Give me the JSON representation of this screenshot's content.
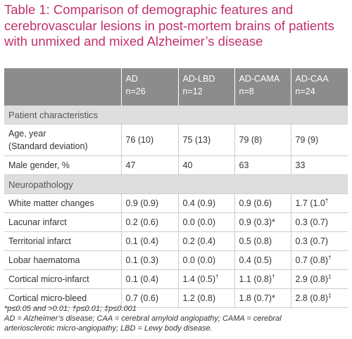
{
  "title": [
    "Table 1: Comparison of demographic features and",
    "cerebrovascular lesions in post-mortem brains of patients",
    "with unmixed and mixed Alzheimer’s disease"
  ],
  "table": {
    "header": [
      {
        "name": "AD",
        "n": "n=26"
      },
      {
        "name": "AD-LBD",
        "n": "n=12"
      },
      {
        "name": "AD-CAMA",
        "n": "n=8"
      },
      {
        "name": "AD-CAA",
        "n": "n=24"
      }
    ],
    "sections": [
      {
        "title": "Patient characteristics",
        "rows": [
          {
            "label": "Age, year",
            "sublabel": "(Standard deviation)",
            "cells": [
              "76 (10)",
              "75 (13)",
              "79 (8)",
              "79 (9)"
            ]
          },
          {
            "label": "Male gender, %",
            "cells": [
              "47",
              "40",
              "63",
              "33"
            ]
          }
        ]
      },
      {
        "title": "Neuropathology",
        "rows": [
          {
            "label": "White matter changes",
            "cells": [
              "0.9 (0.9)",
              "0.4 (0.9)",
              "0.9 (0.6)",
              {
                "text": "1.7 (1.0",
                "sup": "†"
              }
            ]
          },
          {
            "label": "Lacunar infarct",
            "cells": [
              "0.2 (0.6)",
              "0.0 (0.0)",
              "0.9 (0.3)*",
              "0.3 (0.7)"
            ]
          },
          {
            "label": "Territorial infarct",
            "cells": [
              "0.1 (0.4)",
              "0.2 (0.4)",
              "0.5 (0.8)",
              "0.3 (0.7)"
            ]
          },
          {
            "label": "Lobar haematoma",
            "cells": [
              "0.1 (0.3)",
              "0.0 (0.0)",
              "0.4 (0.5)",
              {
                "text": "0.7 (0.8)",
                "sup": "†"
              }
            ]
          },
          {
            "label": "Cortical micro-infarct",
            "cells": [
              "0.1 (0.4)",
              {
                "text": "1.4 (0.5)",
                "sup": "†"
              },
              {
                "text": "1.1 (0.8)",
                "sup": "†"
              },
              {
                "text": "2.9 (0.8)",
                "sup": "‡"
              }
            ]
          },
          {
            "label": "Cortical micro-bleed",
            "cells": [
              "0.7 (0.6)",
              "1.2 (0.8)",
              "1.8 (0.7)*",
              {
                "text": "2.8 (0.8)",
                "sup": "‡"
              }
            ]
          }
        ]
      }
    ]
  },
  "footnotes": [
    "*p≤0.05 and >0.01; †p≤0.01; ‡p≤0.001",
    "AD = Alzheimer’s disease; CAA = cerebral amyloid angiopathy; CAMA = cerebral",
    "arteriosclerotic micro-angiopathy; LBD = Lewy body disease."
  ]
}
